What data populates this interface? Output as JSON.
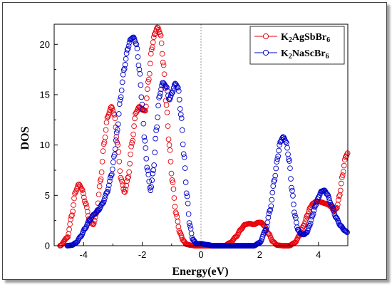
{
  "chart_data": {
    "type": "line",
    "xlabel": "Energy(eV)",
    "ylabel": "DOS",
    "xlim": [
      -5,
      5
    ],
    "ylim": [
      0,
      22
    ],
    "xticks": [
      -4,
      -2,
      0,
      2,
      4
    ],
    "yticks": [
      0,
      5,
      10,
      15,
      20
    ],
    "xtick_labels": [
      "-4",
      "-2",
      "0",
      "2",
      "4"
    ],
    "ytick_labels": [
      "0",
      "5",
      "10",
      "15",
      "20"
    ],
    "fermi_level_line": 0,
    "legend_position": "top-right",
    "marker": "open-circle",
    "series": [
      {
        "name": "K2AgSbBr6",
        "legend_parts": [
          [
            "K",
            ""
          ],
          [
            "2",
            "sub"
          ],
          [
            "AgSbBr",
            ""
          ],
          [
            "6",
            "sub"
          ]
        ],
        "color": "#e8000b",
        "x": [
          -4.8,
          -4.55,
          -4.4,
          -4.28,
          -4.16,
          -4.05,
          -3.93,
          -3.8,
          -3.67,
          -3.55,
          -3.42,
          -3.3,
          -3.18,
          -3.05,
          -2.95,
          -2.85,
          -2.72,
          -2.6,
          -2.48,
          -2.35,
          -2.22,
          -2.1,
          -2.0,
          -1.9,
          -1.78,
          -1.68,
          -1.58,
          -1.48,
          -1.38,
          -1.28,
          -1.18,
          -1.08,
          -0.98,
          -0.85,
          -0.72,
          -0.6,
          -0.5,
          -0.35,
          -0.2,
          0.0,
          0.6,
          0.8,
          1.0,
          1.2,
          1.35,
          1.5,
          1.65,
          1.8,
          1.95,
          2.05,
          2.15,
          2.3,
          2.45,
          2.6,
          2.8,
          3.0,
          3.2,
          3.35,
          3.5,
          3.62,
          3.72,
          3.82,
          3.92,
          4.02,
          4.12,
          4.22,
          4.32,
          4.42,
          4.52,
          4.62,
          4.72,
          4.82,
          4.92,
          5.0
        ],
        "y": [
          0,
          0.8,
          3.0,
          5.3,
          6.1,
          5.6,
          4.2,
          2.6,
          2.1,
          3.3,
          6.5,
          10.2,
          12.8,
          13.8,
          13.0,
          10.2,
          6.6,
          5.3,
          6.8,
          10.2,
          13.2,
          13.8,
          13.5,
          13.4,
          16.5,
          19.5,
          21.0,
          21.7,
          21.0,
          18.0,
          14.0,
          10.0,
          6.5,
          3.2,
          1.3,
          0.5,
          0.15,
          0.05,
          0,
          0,
          0,
          0,
          0.3,
          0.9,
          1.6,
          2.1,
          2.2,
          2.1,
          2.3,
          2.3,
          2.0,
          1.2,
          0.4,
          0.05,
          0,
          0,
          0.3,
          1.0,
          2.0,
          3.0,
          3.8,
          4.2,
          4.4,
          4.4,
          4.3,
          4.2,
          4.1,
          3.9,
          3.5,
          3.7,
          5.0,
          7.0,
          8.8,
          9.2
        ]
      },
      {
        "name": "K2NaScBr6",
        "legend_parts": [
          [
            "K",
            ""
          ],
          [
            "2",
            "sub"
          ],
          [
            "NaScBr",
            ""
          ],
          [
            "6",
            "sub"
          ]
        ],
        "color": "#0000cc",
        "x": [
          -4.55,
          -4.4,
          -4.25,
          -4.1,
          -3.95,
          -3.8,
          -3.65,
          -3.5,
          -3.35,
          -3.2,
          -3.05,
          -2.95,
          -2.85,
          -2.75,
          -2.62,
          -2.5,
          -2.4,
          -2.3,
          -2.2,
          -2.1,
          -2.0,
          -1.92,
          -1.82,
          -1.72,
          -1.62,
          -1.52,
          -1.42,
          -1.3,
          -1.18,
          -1.08,
          -0.98,
          -0.88,
          -0.78,
          -0.68,
          -0.58,
          -0.48,
          -0.38,
          -0.28,
          -0.15,
          0.0,
          0.2,
          0.4,
          1.8,
          2.0,
          2.2,
          2.35,
          2.5,
          2.6,
          2.7,
          2.8,
          2.9,
          3.0,
          3.1,
          3.2,
          3.3,
          3.4,
          3.5,
          3.6,
          3.7,
          3.8,
          3.9,
          4.0,
          4.1,
          4.2,
          4.3,
          4.45,
          4.6,
          4.75,
          4.9,
          5.0
        ],
        "y": [
          0,
          0.05,
          0.3,
          0.9,
          1.7,
          2.5,
          3.1,
          3.5,
          4.2,
          5.3,
          7.0,
          9.0,
          11.5,
          14.5,
          17.5,
          19.5,
          20.5,
          20.7,
          20.0,
          17.5,
          14.0,
          10.5,
          7.5,
          5.5,
          7.5,
          11.5,
          14.8,
          16.2,
          15.8,
          14.5,
          15.2,
          16.1,
          15.7,
          13.0,
          9.0,
          5.0,
          2.0,
          0.6,
          0.2,
          0.2,
          0.1,
          0,
          0,
          0.3,
          1.5,
          3.5,
          6.5,
          8.6,
          10.3,
          10.8,
          10.3,
          8.5,
          5.5,
          3.0,
          1.6,
          1.2,
          1.1,
          1.3,
          2.0,
          3.0,
          4.0,
          4.8,
          5.4,
          5.5,
          5.1,
          4.0,
          2.8,
          2.0,
          1.5,
          1.3
        ]
      }
    ]
  }
}
